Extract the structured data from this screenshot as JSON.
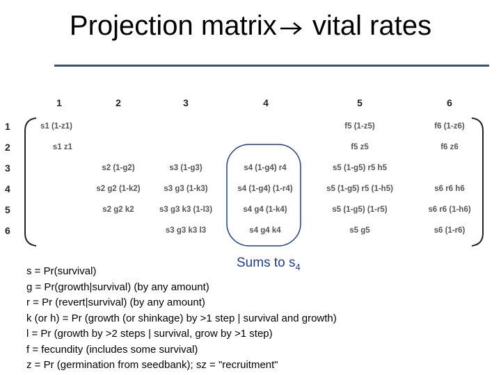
{
  "title": {
    "before_arrow": "Projection matrix",
    "after_arrow": " vital rates"
  },
  "matrix": {
    "columns": [
      "1",
      "2",
      "3",
      "4",
      "5",
      "6"
    ],
    "rows": [
      "1",
      "2",
      "3",
      "4",
      "5",
      "6"
    ],
    "cells": {
      "r1c1": "s1 (1-z1)",
      "r1c5": "f5 (1-z5)",
      "r1c6": "f6 (1-z6)",
      "r2c1": "s1 z1",
      "r2c5": "f5 z5",
      "r2c6": "f6 z6",
      "r3c2": "s2 (1-g2)",
      "r3c3": "s3 (1-g3)",
      "r3c4": "s4 (1-g4) r4",
      "r3c5": "s5 (1-g5) r5 h5",
      "r4c2": "s2 g2 (1-k2)",
      "r4c3": "s3 g3 (1-k3)",
      "r4c4": "s4 (1-g4) (1-r4)",
      "r4c5": "s5 (1-g5) r5 (1-h5)",
      "r4c6": "s6 r6 h6",
      "r5c2": "s2 g2 k2",
      "r5c3": "s3 g3 k3 (1-l3)",
      "r5c4": "s4 g4 (1-k4)",
      "r5c5": "s5 (1-g5) (1-r5)",
      "r5c6": "s6 r6 (1-h6)",
      "r6c3": "s3 g3 k3 l3",
      "r6c4": "s4 g4 k4",
      "r6c5": "s5 g5",
      "r6c6": "s6 (1-r6)"
    }
  },
  "annotation": {
    "text": "Sums to s",
    "subscript": "4"
  },
  "definitions": [
    "s = Pr(survival)",
    "g = Pr(growth|survival)  (by any amount)",
    "r = Pr (revert|survival)  (by any amount)",
    "k (or h) = Pr (growth (or shinkage) by >1 step | survival and growth)",
    "l = Pr (growth by >2 steps | survival, grow by >1 step)",
    "f = fecundity (includes some survival)",
    "z = Pr (germination from seedbank); sz = \"recruitment\""
  ],
  "colors": {
    "rule": "#3e4f6c",
    "annotation": "#1f3c8f",
    "cell_text": "#555555"
  }
}
